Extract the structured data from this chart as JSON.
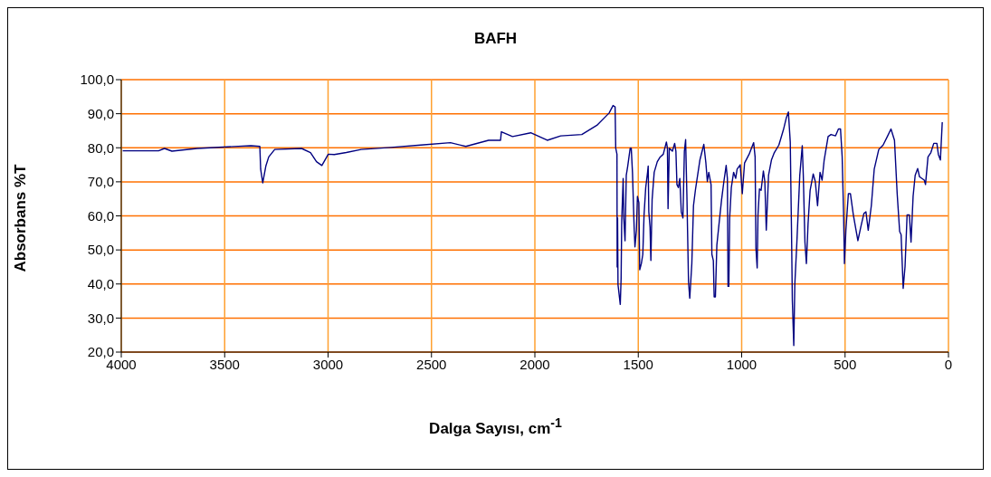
{
  "chart_data": {
    "type": "line",
    "title": "BAFH",
    "xlabel": "Dalga Sayısı, cm$^{-1}$",
    "ylabel": "Absorbans %T",
    "xlim": [
      4000,
      0
    ],
    "xticks": [
      4000,
      3500,
      3000,
      2500,
      2000,
      1500,
      1000,
      500,
      0
    ],
    "ylim": [
      20,
      100
    ],
    "yticks": [
      {
        "value": 20,
        "label": "20,0"
      },
      {
        "value": 30,
        "label": "30,0"
      },
      {
        "value": 40,
        "label": "40,0"
      },
      {
        "value": 50,
        "label": "50,0"
      },
      {
        "value": 60,
        "label": "60,0"
      },
      {
        "value": 70,
        "label": "70,0"
      },
      {
        "value": 80,
        "label": "80,0"
      },
      {
        "value": 90,
        "label": "90,0"
      },
      {
        "value": 100,
        "label": "100,0"
      }
    ],
    "grid": true,
    "marker": "none",
    "line_style": "solid",
    "series": [
      {
        "color": "#000080",
        "x": [
          3993,
          3820,
          3791,
          3755,
          3633,
          3373,
          3330,
          3326,
          3316,
          3301,
          3287,
          3258,
          3128,
          3085,
          3056,
          3030,
          2999,
          2970,
          2912,
          2840,
          2696,
          2552,
          2408,
          2334,
          2224,
          2166,
          2162,
          2108,
          2020,
          1940,
          1875,
          1773,
          1700,
          1641,
          1622,
          1612,
          1609,
          1603,
          1602,
          1600,
          1598,
          1587,
          1583,
          1580,
          1573,
          1570,
          1564,
          1558,
          1551,
          1539,
          1534,
          1528,
          1520,
          1516,
          1509,
          1504,
          1497,
          1493,
          1485,
          1478,
          1472,
          1464,
          1455,
          1452,
          1449,
          1443,
          1439,
          1433,
          1423,
          1408,
          1394,
          1379,
          1364,
          1359,
          1356,
          1350,
          1335,
          1324,
          1318,
          1313,
          1306,
          1299,
          1292,
          1284,
          1277,
          1271,
          1265,
          1257,
          1251,
          1241,
          1233,
          1223,
          1202,
          1183,
          1173,
          1166,
          1159,
          1148,
          1144,
          1137,
          1133,
          1127,
          1120,
          1108,
          1097,
          1086,
          1075,
          1069,
          1066,
          1062,
          1058,
          1050,
          1039,
          1029,
          1022,
          1007,
          997,
          986,
          964,
          942,
          935,
          931,
          925,
          921,
          914,
          906,
          895,
          888,
          881,
          870,
          856,
          842,
          820,
          798,
          784,
          774,
          765,
          759,
          755,
          748,
          743,
          733,
          719,
          707,
          702,
          694,
          687,
          679,
          669,
          654,
          644,
          633,
          621,
          611,
          601,
          582,
          568,
          546,
          532,
          522,
          514,
          507,
          503,
          496,
          484,
          474,
          460,
          438,
          424,
          409,
          399,
          388,
          373,
          359,
          337,
          316,
          294,
          278,
          261,
          248,
          236,
          229,
          223,
          219,
          210,
          200,
          189,
          181,
          171,
          161,
          149,
          140,
          117,
          111,
          99,
          85,
          71,
          56,
          49,
          39,
          30
        ],
        "values": [
          79.1,
          79.1,
          79.8,
          79.0,
          79.8,
          80.6,
          80.4,
          73.7,
          69.7,
          74.6,
          77.3,
          79.5,
          79.8,
          78.6,
          75.9,
          74.8,
          78.1,
          78.0,
          78.6,
          79.5,
          80.1,
          80.8,
          81.5,
          80.4,
          82.2,
          82.2,
          84.7,
          83.3,
          84.4,
          82.2,
          83.5,
          83.9,
          86.6,
          90.2,
          92.4,
          92.0,
          79.9,
          78.1,
          45.0,
          59.4,
          39.8,
          34.0,
          41.6,
          58.5,
          71.0,
          59.4,
          52.7,
          71.9,
          74.6,
          79.9,
          79.9,
          72.8,
          56.7,
          50.9,
          55.8,
          65.7,
          63.9,
          44.2,
          46.0,
          48.7,
          60.3,
          68.3,
          72.8,
          74.6,
          61.2,
          56.7,
          46.9,
          64.8,
          72.8,
          75.9,
          77.3,
          78.1,
          81.7,
          79.9,
          62.1,
          79.9,
          79.0,
          81.3,
          79.0,
          69.2,
          68.3,
          71.0,
          61.2,
          59.4,
          79.0,
          82.4,
          66.5,
          40.7,
          35.8,
          46.0,
          63.0,
          67.9,
          76.4,
          81.0,
          75.5,
          70.1,
          72.8,
          69.2,
          48.7,
          46.9,
          36.2,
          36.2,
          51.4,
          58.5,
          64.8,
          70.1,
          74.8,
          71.0,
          39.3,
          39.3,
          59.4,
          68.3,
          72.8,
          71.0,
          73.7,
          75.0,
          66.5,
          75.5,
          78.1,
          81.5,
          77.3,
          50.5,
          44.7,
          60.3,
          67.9,
          67.5,
          73.2,
          70.1,
          55.8,
          71.9,
          76.4,
          78.6,
          80.8,
          85.3,
          88.8,
          90.5,
          81.7,
          55.8,
          35.3,
          21.9,
          39.8,
          52.3,
          71.9,
          80.6,
          71.9,
          52.3,
          46.0,
          57.6,
          67.5,
          72.3,
          70.1,
          63.0,
          72.8,
          70.5,
          76.4,
          83.3,
          83.9,
          83.5,
          85.5,
          85.5,
          77.3,
          60.3,
          46.0,
          55.8,
          66.5,
          66.5,
          60.3,
          52.7,
          56.7,
          60.7,
          61.2,
          55.8,
          63.0,
          73.7,
          79.5,
          80.8,
          83.5,
          85.5,
          82.2,
          66.5,
          55.4,
          54.5,
          45.1,
          38.7,
          45.1,
          60.3,
          60.3,
          52.3,
          65.7,
          71.9,
          73.9,
          71.5,
          70.5,
          69.2,
          77.3,
          78.6,
          81.3,
          81.3,
          78.1,
          76.4,
          87.5
        ]
      }
    ]
  }
}
